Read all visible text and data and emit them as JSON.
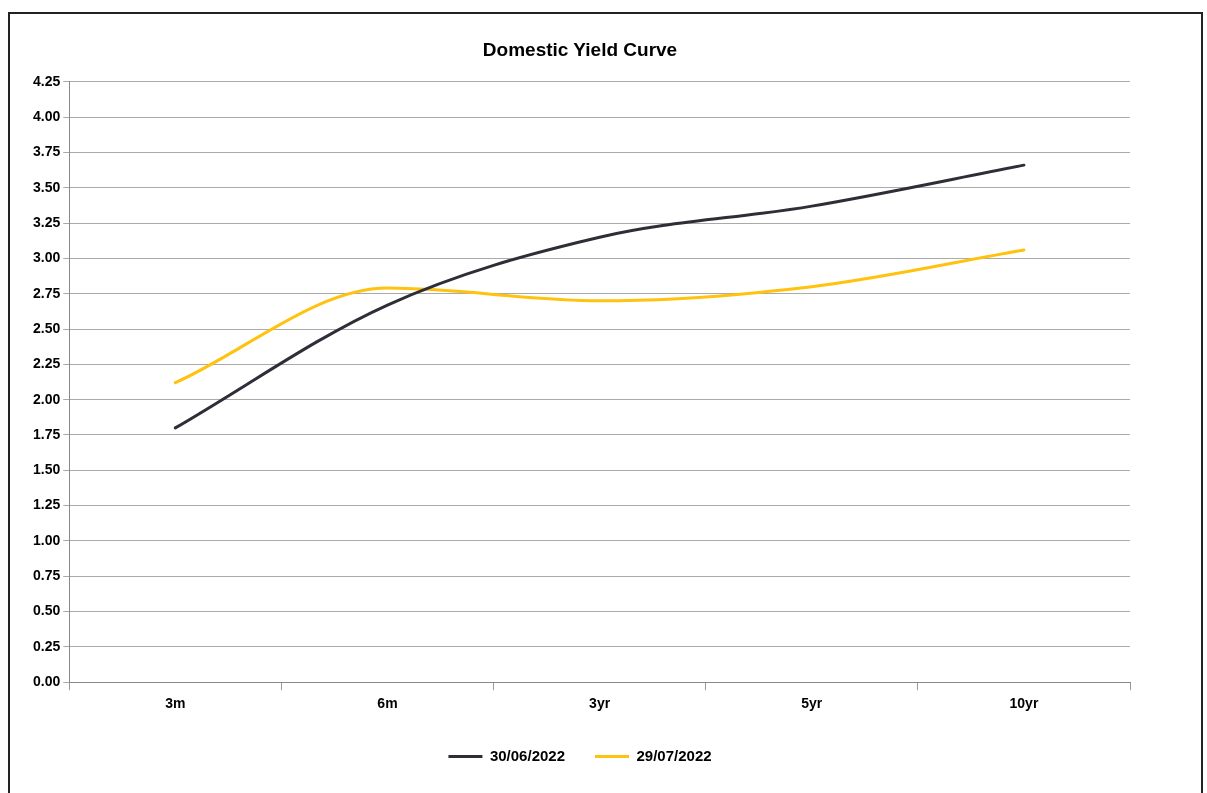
{
  "chart_data": {
    "type": "line",
    "title": "Domestic Yield Curve",
    "categories": [
      "3m",
      "6m",
      "3yr",
      "5yr",
      "10yr"
    ],
    "series": [
      {
        "name": "30/06/2022",
        "color": "#2e2e38",
        "values": [
          1.8,
          2.67,
          3.15,
          3.37,
          3.66
        ]
      },
      {
        "name": "29/07/2022",
        "color": "#ffc20e",
        "values": [
          2.12,
          2.79,
          2.7,
          2.8,
          3.06
        ]
      }
    ],
    "ylim": [
      0,
      4.25
    ],
    "yticks": [
      {
        "value": 0,
        "label": "0.00"
      },
      {
        "value": 0.25,
        "label": "0.25"
      },
      {
        "value": 0.5,
        "label": "0.50"
      },
      {
        "value": 0.75,
        "label": "0.75"
      },
      {
        "value": 1,
        "label": "1.00"
      },
      {
        "value": 1.25,
        "label": "1.25"
      },
      {
        "value": 1.5,
        "label": "1.50"
      },
      {
        "value": 1.75,
        "label": "1.75"
      },
      {
        "value": 2,
        "label": "2.00"
      },
      {
        "value": 2.25,
        "label": "2.25"
      },
      {
        "value": 2.5,
        "label": "2.50"
      },
      {
        "value": 2.75,
        "label": "2.75"
      },
      {
        "value": 3,
        "label": "3.00"
      },
      {
        "value": 3.25,
        "label": "3.25"
      },
      {
        "value": 3.5,
        "label": "3.50"
      },
      {
        "value": 3.75,
        "label": "3.75"
      },
      {
        "value": 4,
        "label": "4.00"
      },
      {
        "value": 4.25,
        "label": "4.25"
      }
    ],
    "grid": "y",
    "legend": "bottom",
    "marker": "none",
    "line_style": "solid"
  }
}
